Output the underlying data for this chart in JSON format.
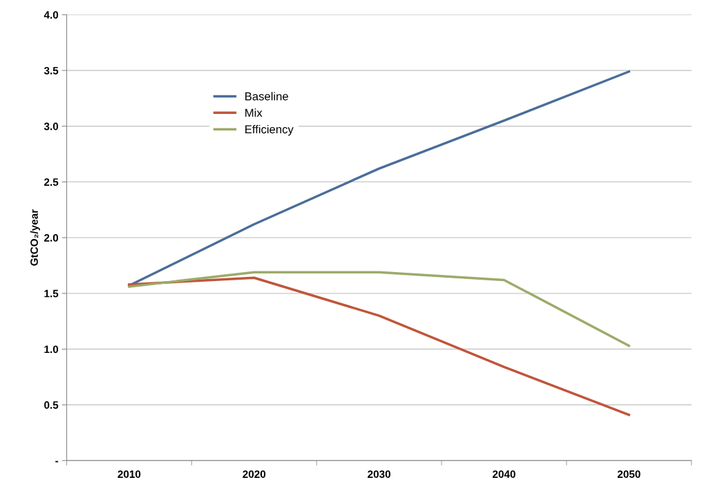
{
  "chart_data": {
    "type": "line",
    "ylabel": "GtCO₂/year",
    "categories": [
      "2010",
      "2020",
      "2030",
      "2040",
      "2050"
    ],
    "series": [
      {
        "name": "Baseline",
        "color": "#4a6d9a",
        "values": [
          1.57,
          2.12,
          2.62,
          3.05,
          3.49
        ]
      },
      {
        "name": "Mix",
        "color": "#c0553a",
        "values": [
          1.58,
          1.64,
          1.3,
          0.84,
          0.41
        ]
      },
      {
        "name": "Efficiency",
        "color": "#9bab6a",
        "values": [
          1.56,
          1.69,
          1.69,
          1.62,
          1.03
        ]
      }
    ],
    "ylim": [
      0,
      4
    ],
    "yticks": [
      {
        "value": 0,
        "label": "-"
      },
      {
        "value": 0.5,
        "label": "0.5"
      },
      {
        "value": 1,
        "label": "1.0"
      },
      {
        "value": 1.5,
        "label": "1.5"
      },
      {
        "value": 2,
        "label": "2.0"
      },
      {
        "value": 2.5,
        "label": "2.5"
      },
      {
        "value": 3,
        "label": "3.0"
      },
      {
        "value": 3.5,
        "label": "3.5"
      },
      {
        "value": 4,
        "label": "4.0"
      }
    ],
    "grid": "y",
    "legend": "top left",
    "marker": "none",
    "line_style": "solid"
  }
}
